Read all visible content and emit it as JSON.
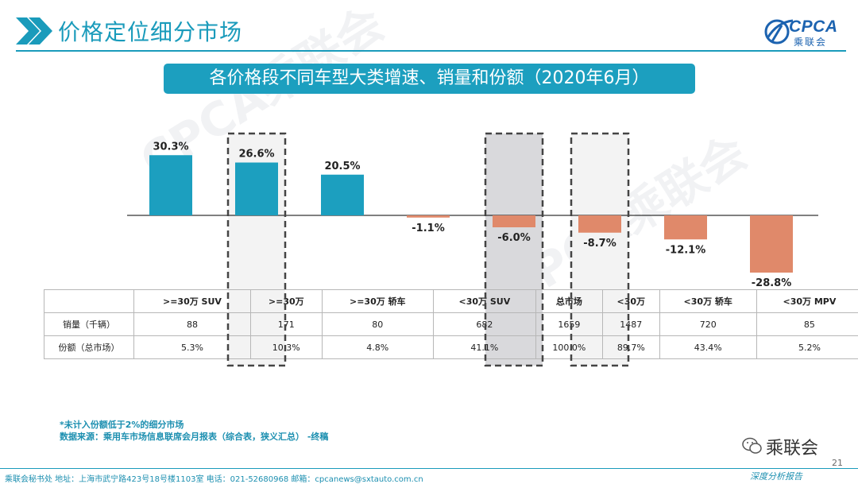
{
  "header": {
    "title": "价格定位细分市场",
    "logo_text": "CPCA",
    "logo_sub": "乘联会"
  },
  "banner": {
    "title": "各价格段不同车型大类增速、销量和份额（2020年6月）"
  },
  "watermark": "CPCA乘联会",
  "chart_data": {
    "type": "bar",
    "title": "各价格段不同车型大类增速、销量和份额（2020年6月）",
    "xlabel": "",
    "ylabel": "",
    "categories": [
      ">=30万 SUV",
      ">=30万",
      ">=30万 轿车",
      "<30万 SUV",
      "总市场",
      "<30万",
      "<30万 轿车",
      "<30万 MPV"
    ],
    "values": [
      30.3,
      26.6,
      20.5,
      -1.1,
      -6.0,
      -8.7,
      -12.1,
      -28.8
    ],
    "value_labels": [
      "30.3%",
      "26.6%",
      "20.5%",
      "-1.1%",
      "-6.0%",
      "-8.7%",
      "-12.1%",
      "-28.8%"
    ],
    "ylim": [
      -30,
      35
    ],
    "grid": false,
    "positive_color": "#1c9fbf",
    "negative_color": "#e0896a",
    "highlighted": [
      ">=30万",
      "总市场",
      "<30万"
    ]
  },
  "table": {
    "headers": [
      ">=30万 SUV",
      ">=30万",
      ">=30万 轿车",
      "<30万 SUV",
      "总市场",
      "<30万",
      "<30万 轿车",
      "<30万 MPV"
    ],
    "rows": [
      {
        "label": "销量（千辆）",
        "values": [
          "88",
          "171",
          "80",
          "682",
          "1659",
          "1487",
          "720",
          "85"
        ]
      },
      {
        "label": "份额（总市场）",
        "values": [
          "5.3%",
          "10.3%",
          "4.8%",
          "41.1%",
          "100.0%",
          "89.7%",
          "43.4%",
          "5.2%"
        ]
      }
    ]
  },
  "notes": [
    "*未计入份额低于2%的细分市场",
    "数据来源：乘用车市场信息联席会月报表（综合表，狭义汇总）  -终稿"
  ],
  "footer": {
    "contact": "乘联会秘书处   地址：上海市武宁路423号18号楼1103室   电话：021-52680968   邮箱：cpcanews@sxtauto.com.cn",
    "deep_report": "深度分析报告",
    "page_number": "21",
    "wechat_label": "乘联会"
  },
  "colors": {
    "accent": "#1a9bbb",
    "banner": "#1c9fbf",
    "logo": "#1c63b0"
  }
}
